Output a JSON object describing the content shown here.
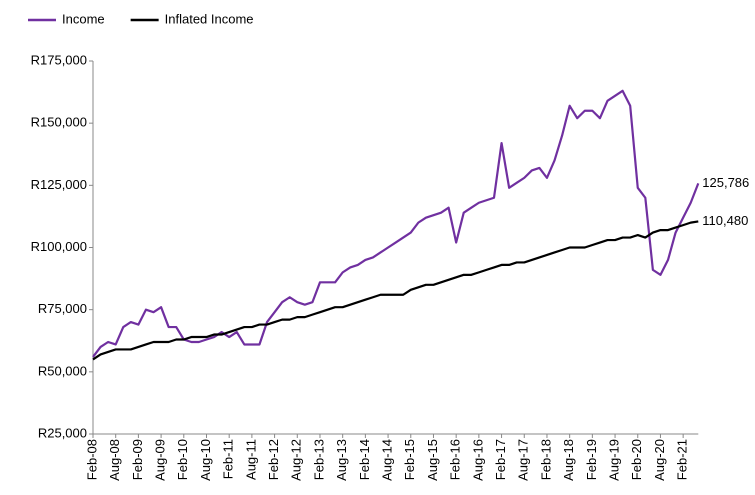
{
  "chart_data": {
    "type": "line",
    "categories": [
      "Feb-08",
      null,
      null,
      "Aug-08",
      null,
      null,
      "Feb-09",
      null,
      null,
      "Aug-09",
      null,
      null,
      "Feb-10",
      null,
      null,
      "Aug-10",
      null,
      null,
      "Feb-11",
      null,
      null,
      "Aug-11",
      null,
      null,
      "Feb-12",
      null,
      null,
      "Aug-12",
      null,
      null,
      "Feb-13",
      null,
      null,
      "Aug-13",
      null,
      null,
      "Feb-14",
      null,
      null,
      "Aug-14",
      null,
      null,
      "Feb-15",
      null,
      null,
      "Aug-15",
      null,
      null,
      "Feb-16",
      null,
      null,
      "Aug-16",
      null,
      null,
      "Feb-17",
      null,
      null,
      "Aug-17",
      null,
      null,
      "Feb-18",
      null,
      null,
      "Aug-18",
      null,
      null,
      "Feb-19",
      null,
      null,
      "Aug-19",
      null,
      null,
      "Feb-20",
      null,
      null,
      "Aug-20",
      null,
      null,
      "Feb-21",
      null,
      null
    ],
    "series": [
      {
        "name": "Income",
        "color": "#7030a0",
        "values": [
          56000,
          60000,
          62000,
          61000,
          68000,
          70000,
          69000,
          75000,
          74000,
          76000,
          68000,
          68000,
          63000,
          62000,
          62000,
          63000,
          64000,
          66000,
          64000,
          66000,
          61000,
          61000,
          61000,
          70000,
          74000,
          78000,
          80000,
          78000,
          77000,
          78000,
          86000,
          86000,
          86000,
          90000,
          92000,
          93000,
          95000,
          96000,
          98000,
          100000,
          102000,
          104000,
          106000,
          110000,
          112000,
          113000,
          114000,
          116000,
          102000,
          114000,
          116000,
          118000,
          119000,
          120000,
          142000,
          124000,
          126000,
          128000,
          131000,
          132000,
          128000,
          135000,
          145000,
          157000,
          152000,
          155000,
          155000,
          152000,
          159000,
          161000,
          163000,
          157000,
          124000,
          120000,
          91000,
          89000,
          95000,
          106000,
          112000,
          118000,
          125786
        ],
        "value_labels": [
          null,
          null,
          null,
          null,
          null,
          null,
          null,
          null,
          null,
          null,
          null,
          null,
          null,
          null,
          null,
          null,
          null,
          null,
          null,
          null,
          null,
          null,
          null,
          null,
          null,
          null,
          null,
          null,
          null,
          null,
          null,
          null,
          null,
          null,
          null,
          null,
          null,
          null,
          null,
          null,
          null,
          null,
          null,
          null,
          null,
          null,
          null,
          null,
          null,
          null,
          null,
          null,
          null,
          null,
          null,
          null,
          null,
          null,
          null,
          null,
          null,
          null,
          null,
          null,
          null,
          null,
          null,
          null,
          null,
          null,
          null,
          null,
          null,
          null,
          null,
          null,
          null,
          null,
          null,
          null,
          "125,786"
        ]
      },
      {
        "name": "Inflated Income",
        "color": "#000000",
        "values": [
          55000,
          57000,
          58000,
          59000,
          59000,
          59000,
          60000,
          61000,
          62000,
          62000,
          62000,
          63000,
          63000,
          64000,
          64000,
          64000,
          65000,
          65000,
          66000,
          67000,
          68000,
          68000,
          69000,
          69000,
          70000,
          71000,
          71000,
          72000,
          72000,
          73000,
          74000,
          75000,
          76000,
          76000,
          77000,
          78000,
          79000,
          80000,
          81000,
          81000,
          81000,
          81000,
          83000,
          84000,
          85000,
          85000,
          86000,
          87000,
          88000,
          89000,
          89000,
          90000,
          91000,
          92000,
          93000,
          93000,
          94000,
          94000,
          95000,
          96000,
          97000,
          98000,
          99000,
          100000,
          100000,
          100000,
          101000,
          102000,
          103000,
          103000,
          104000,
          104000,
          105000,
          104000,
          106000,
          107000,
          107000,
          108000,
          109000,
          110000,
          110480
        ],
        "value_labels": [
          null,
          null,
          null,
          null,
          null,
          null,
          null,
          null,
          null,
          null,
          null,
          null,
          null,
          null,
          null,
          null,
          null,
          null,
          null,
          null,
          null,
          null,
          null,
          null,
          null,
          null,
          null,
          null,
          null,
          null,
          null,
          null,
          null,
          null,
          null,
          null,
          null,
          null,
          null,
          null,
          null,
          null,
          null,
          null,
          null,
          null,
          null,
          null,
          null,
          null,
          null,
          null,
          null,
          null,
          null,
          null,
          null,
          null,
          null,
          null,
          null,
          null,
          null,
          null,
          null,
          null,
          null,
          null,
          null,
          null,
          null,
          null,
          null,
          null,
          null,
          null,
          null,
          null,
          null,
          null,
          "110,480"
        ]
      }
    ],
    "ylim": [
      25000,
      175000
    ],
    "yticks": [
      {
        "value": 25000,
        "label": "R25,000"
      },
      {
        "value": 50000,
        "label": "R50,000"
      },
      {
        "value": 75000,
        "label": "R75,000"
      },
      {
        "value": 100000,
        "label": "R100,000"
      },
      {
        "value": 125000,
        "label": "R125,000"
      },
      {
        "value": 150000,
        "label": "R150,000"
      },
      {
        "value": 175000,
        "label": "R175,000"
      }
    ],
    "grid": false,
    "legend": "top-left"
  }
}
